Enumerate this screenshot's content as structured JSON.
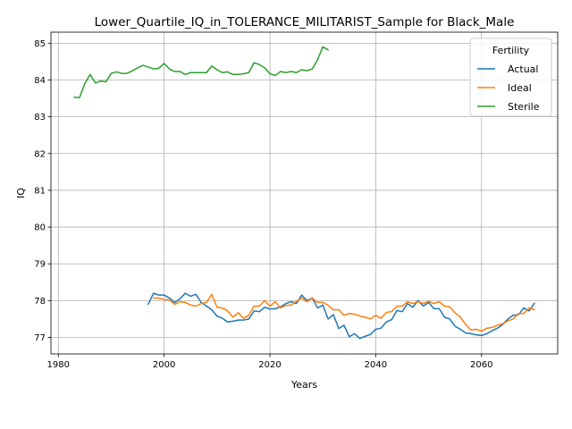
{
  "chart_data": {
    "type": "line",
    "title": "Lower_Quartile_IQ_in_TOLERANCE_MILITARIST_Sample for Black_Male",
    "xlabel": "Years",
    "ylabel": "IQ",
    "xlim": [
      1978.6,
      2074.4
    ],
    "ylim": [
      76.55,
      85.3
    ],
    "xticks": [
      1980,
      2000,
      2020,
      2040,
      2060
    ],
    "yticks": [
      77,
      78,
      79,
      80,
      81,
      82,
      83,
      84,
      85
    ],
    "grid": true,
    "legend": {
      "title": "Fertility",
      "placement": "top-right"
    },
    "series": [
      {
        "name": "Actual",
        "color": "#1f77b4",
        "x": [
          1997,
          1998,
          1999,
          2000,
          2001,
          2002,
          2003,
          2004,
          2005,
          2006,
          2007,
          2008,
          2009,
          2010,
          2011,
          2012,
          2013,
          2014,
          2015,
          2016,
          2017,
          2018,
          2019,
          2020,
          2021,
          2022,
          2023,
          2024,
          2025,
          2026,
          2027,
          2028,
          2029,
          2030,
          2031,
          2032,
          2033,
          2034,
          2035,
          2036,
          2037,
          2038,
          2039,
          2040,
          2041,
          2042,
          2043,
          2044,
          2045,
          2046,
          2047,
          2048,
          2049,
          2050,
          2051,
          2052,
          2053,
          2054,
          2055,
          2056,
          2057,
          2058,
          2059,
          2060,
          2061,
          2062,
          2063,
          2064,
          2065,
          2066,
          2067,
          2068,
          2069,
          2070
        ],
        "y": [
          77.9,
          78.2,
          78.15,
          78.15,
          78.07,
          77.95,
          78.05,
          78.2,
          78.12,
          78.17,
          77.95,
          77.85,
          77.75,
          77.58,
          77.52,
          77.42,
          77.44,
          77.47,
          77.47,
          77.5,
          77.72,
          77.7,
          77.82,
          77.77,
          77.78,
          77.83,
          77.92,
          77.97,
          77.92,
          78.15,
          78.0,
          78.07,
          77.8,
          77.88,
          77.5,
          77.62,
          77.24,
          77.33,
          77.02,
          77.1,
          76.97,
          77.03,
          77.08,
          77.22,
          77.25,
          77.42,
          77.48,
          77.73,
          77.7,
          77.92,
          77.82,
          78.0,
          77.85,
          77.95,
          77.78,
          77.78,
          77.55,
          77.5,
          77.3,
          77.22,
          77.12,
          77.1,
          77.07,
          77.05,
          77.1,
          77.18,
          77.25,
          77.35,
          77.5,
          77.6,
          77.62,
          77.8,
          77.72,
          77.93
        ]
      },
      {
        "name": "Ideal",
        "color": "#ff7f0e",
        "x": [
          1998,
          1999,
          2000,
          2001,
          2002,
          2003,
          2004,
          2005,
          2006,
          2007,
          2008,
          2009,
          2010,
          2011,
          2012,
          2013,
          2014,
          2015,
          2016,
          2017,
          2018,
          2019,
          2020,
          2021,
          2022,
          2023,
          2024,
          2025,
          2026,
          2027,
          2028,
          2029,
          2030,
          2031,
          2032,
          2033,
          2034,
          2035,
          2036,
          2037,
          2038,
          2039,
          2040,
          2041,
          2042,
          2043,
          2044,
          2045,
          2046,
          2047,
          2048,
          2049,
          2050,
          2051,
          2052,
          2053,
          2054,
          2055,
          2056,
          2057,
          2058,
          2059,
          2060,
          2061,
          2062,
          2063,
          2064,
          2065,
          2066,
          2067,
          2068,
          2069,
          2070
        ],
        "y": [
          78.07,
          78.07,
          78.03,
          78.02,
          77.9,
          77.97,
          77.95,
          77.88,
          77.85,
          77.92,
          77.95,
          78.17,
          77.82,
          77.8,
          77.72,
          77.55,
          77.67,
          77.52,
          77.6,
          77.85,
          77.85,
          78.0,
          77.85,
          77.97,
          77.8,
          77.87,
          77.88,
          77.98,
          78.07,
          77.97,
          78.07,
          77.95,
          77.95,
          77.87,
          77.75,
          77.75,
          77.6,
          77.65,
          77.63,
          77.58,
          77.55,
          77.5,
          77.6,
          77.52,
          77.68,
          77.7,
          77.85,
          77.85,
          77.97,
          77.92,
          77.97,
          77.92,
          77.98,
          77.92,
          77.97,
          77.85,
          77.83,
          77.67,
          77.55,
          77.35,
          77.2,
          77.22,
          77.17,
          77.25,
          77.27,
          77.33,
          77.37,
          77.45,
          77.5,
          77.65,
          77.65,
          77.8,
          77.75
        ]
      },
      {
        "name": "Sterile",
        "color": "#2ca02c",
        "x": [
          1983,
          1984,
          1985,
          1986,
          1987,
          1988,
          1989,
          1990,
          1991,
          1992,
          1993,
          1994,
          1995,
          1996,
          1997,
          1998,
          1999,
          2000,
          2001,
          2002,
          2003,
          2004,
          2005,
          2006,
          2007,
          2008,
          2009,
          2010,
          2011,
          2012,
          2013,
          2014,
          2015,
          2016,
          2017,
          2018,
          2019,
          2020,
          2021,
          2022,
          2023,
          2024,
          2025,
          2026,
          2027,
          2028,
          2029,
          2030,
          2031
        ],
        "y": [
          83.53,
          83.52,
          83.9,
          84.15,
          83.92,
          83.97,
          83.95,
          84.18,
          84.22,
          84.18,
          84.18,
          84.25,
          84.33,
          84.4,
          84.35,
          84.3,
          84.32,
          84.45,
          84.3,
          84.23,
          84.23,
          84.15,
          84.2,
          84.2,
          84.2,
          84.2,
          84.38,
          84.28,
          84.2,
          84.22,
          84.15,
          84.15,
          84.17,
          84.2,
          84.47,
          84.42,
          84.33,
          84.17,
          84.12,
          84.23,
          84.2,
          84.23,
          84.2,
          84.28,
          84.25,
          84.3,
          84.55,
          84.9,
          84.82
        ]
      }
    ]
  }
}
